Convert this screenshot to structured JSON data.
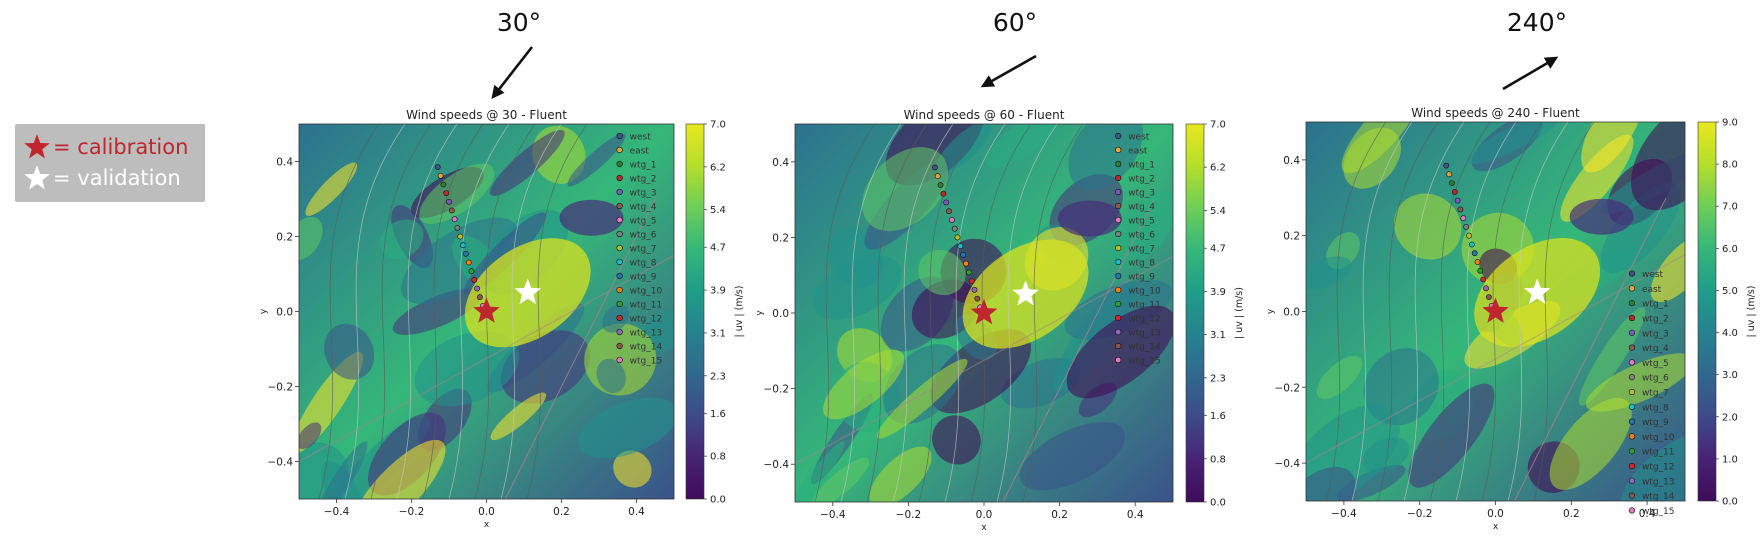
{
  "legend": {
    "calibration_label": "= calibration",
    "validation_label": "= validation",
    "calibration_icon": "star-icon",
    "validation_icon": "star-icon",
    "calibration_color": "#c0262d",
    "validation_color": "#ffffff"
  },
  "chart_data": [
    {
      "type": "heatmap",
      "direction_label": "30°",
      "direction_deg": 30,
      "title": "Wind speeds @ 30 - Fluent",
      "xlabel": "x",
      "ylabel": "y",
      "xlim": [
        -0.5,
        0.5
      ],
      "ylim": [
        -0.5,
        0.5
      ],
      "xticks": [
        "−0.4",
        "−0.2",
        "0.0",
        "0.2",
        "0.4"
      ],
      "yticks": [
        "−0.4",
        "−0.2",
        "0.0",
        "0.2",
        "0.4"
      ],
      "colorbar_label": "| uv | (m/s)",
      "colorbar_ticks": [
        "0.0",
        "0.8",
        "1.6",
        "2.3",
        "3.1",
        "3.9",
        "4.7",
        "5.4",
        "6.2",
        "7.0"
      ],
      "vmin": 0.0,
      "vmax": 7.0,
      "calibration_point": [
        0.0,
        0.0
      ],
      "validation_point": [
        0.11,
        0.05
      ],
      "stations": [
        "west",
        "east",
        "wtg_1",
        "wtg_2",
        "wtg_3",
        "wtg_4",
        "wtg_5",
        "wtg_6",
        "wtg_7",
        "wtg_8",
        "wtg_9",
        "wtg_10",
        "wtg_11",
        "wtg_12",
        "wtg_13",
        "wtg_14",
        "wtg_15"
      ]
    },
    {
      "type": "heatmap",
      "direction_label": "60°",
      "direction_deg": 60,
      "title": "Wind speeds @ 60 - Fluent",
      "xlabel": "x",
      "ylabel": "y",
      "xlim": [
        -0.5,
        0.5
      ],
      "ylim": [
        -0.5,
        0.5
      ],
      "xticks": [
        "−0.4",
        "−0.2",
        "0.0",
        "0.2",
        "0.4"
      ],
      "yticks": [
        "−0.4",
        "−0.2",
        "0.0",
        "0.2",
        "0.4"
      ],
      "colorbar_label": "| uv | (m/s)",
      "colorbar_ticks": [
        "0.0",
        "0.8",
        "1.6",
        "2.3",
        "3.1",
        "3.9",
        "4.7",
        "5.4",
        "6.2",
        "7.0"
      ],
      "vmin": 0.0,
      "vmax": 7.0,
      "calibration_point": [
        0.0,
        0.0
      ],
      "validation_point": [
        0.11,
        0.05
      ],
      "stations": [
        "west",
        "east",
        "wtg_1",
        "wtg_2",
        "wtg_3",
        "wtg_4",
        "wtg_5",
        "wtg_6",
        "wtg_7",
        "wtg_8",
        "wtg_9",
        "wtg_10",
        "wtg_11",
        "wtg_12",
        "wtg_13",
        "wtg_14",
        "wtg_15"
      ]
    },
    {
      "type": "heatmap",
      "direction_label": "240°",
      "direction_deg": 240,
      "title": "Wind speeds @ 240 - Fluent",
      "xlabel": "x",
      "ylabel": "y",
      "xlim": [
        -0.5,
        0.5
      ],
      "ylim": [
        -0.5,
        0.5
      ],
      "xticks": [
        "−0.4",
        "−0.2",
        "0.0",
        "0.2",
        "0.4"
      ],
      "yticks": [
        "−0.4",
        "−0.2",
        "0.0",
        "0.2",
        "0.4"
      ],
      "colorbar_label": "| uv | (m/s)",
      "colorbar_ticks": [
        "0.0",
        "1.0",
        "2.0",
        "3.0",
        "4.0",
        "5.0",
        "6.0",
        "7.0",
        "8.0",
        "9.0"
      ],
      "vmin": 0.0,
      "vmax": 9.0,
      "calibration_point": [
        0.0,
        0.0
      ],
      "validation_point": [
        0.11,
        0.05
      ],
      "stations": [
        "west",
        "east",
        "wtg_1",
        "wtg_2",
        "wtg_3",
        "wtg_4",
        "wtg_5",
        "wtg_6",
        "wtg_7",
        "wtg_8",
        "wtg_9",
        "wtg_10",
        "wtg_11",
        "wtg_12",
        "wtg_13",
        "wtg_14",
        "wtg_15"
      ]
    }
  ]
}
